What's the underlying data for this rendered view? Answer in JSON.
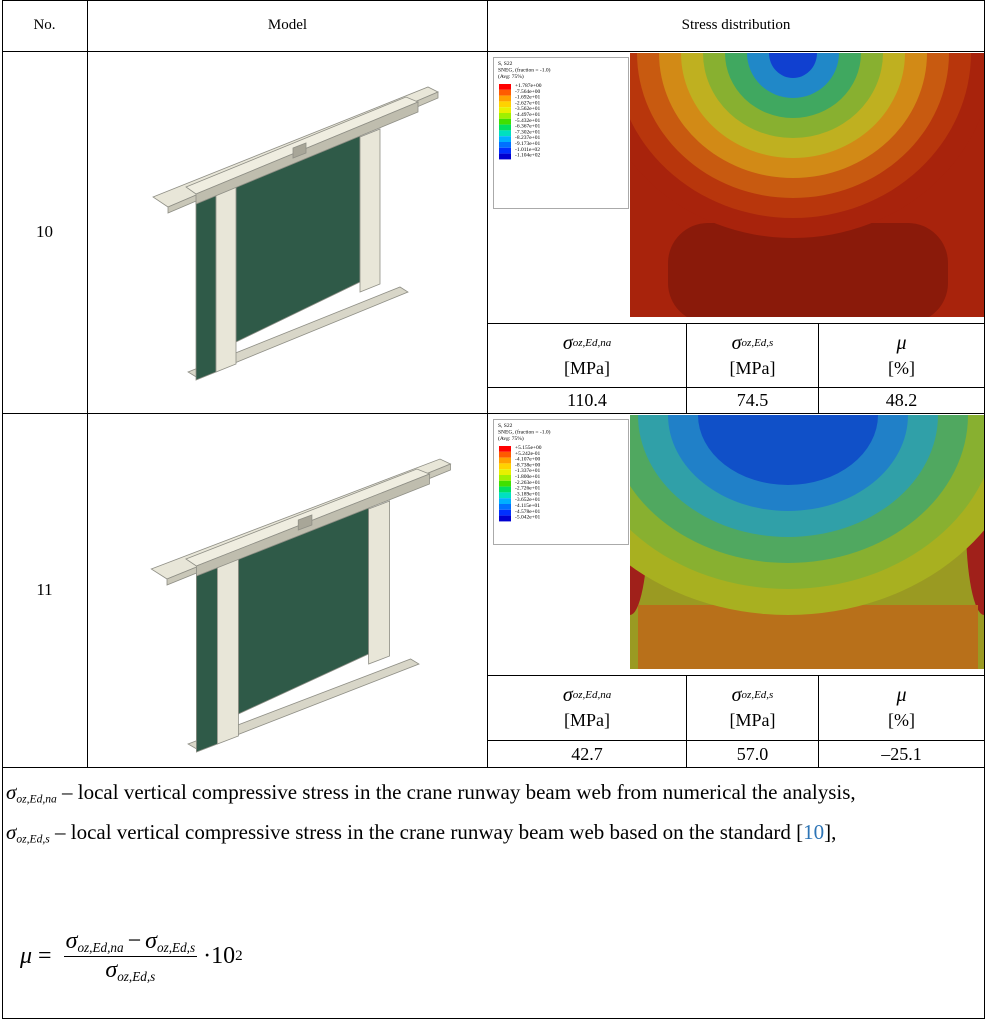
{
  "table": {
    "header": [
      "No.",
      "Model",
      "Stress distribution"
    ],
    "rows": [
      {
        "no": "10",
        "legend": {
          "title": [
            "S, S22",
            "SNEG, (fraction = -1.0)",
            "(Avg: 75%)"
          ],
          "values": [
            "+1.787e+00",
            "-7.564e+00",
            "-1.692e+01",
            "-2.627e+01",
            "-3.562e+01",
            "-4.497e+01",
            "-5.432e+01",
            "-6.367e+01",
            "-7.302e+01",
            "-8.237e+01",
            "-9.173e+01",
            "-1.011e+02",
            "-1.104e+02"
          ]
        },
        "result_header": [
          {
            "symbol": "σ",
            "subscript": "oz,Ed,na"
          },
          {
            "symbol": "σ",
            "subscript": "oz,Ed,s"
          },
          {
            "symbol": "μ"
          }
        ],
        "units": [
          "[MPa]",
          "[MPa]",
          "[%]"
        ],
        "results": [
          "110.4",
          "74.5",
          "48.2"
        ]
      },
      {
        "no": "11",
        "legend": {
          "title": [
            "S, S22",
            "SNEG, (fraction = -1.0)",
            "(Avg: 75%)"
          ],
          "values": [
            "+5.155e+00",
            "+5.242e-01",
            "-4.107e+00",
            "-8.738e+00",
            "-1.337e+01",
            "-1.800e+01",
            "-2.263e+01",
            "-2.726e+01",
            "-3.189e+01",
            "-3.652e+01",
            "-4.115e+01",
            "-4.578e+01",
            "-5.042e+01"
          ]
        },
        "result_header": [
          {
            "symbol": "σ",
            "subscript": "oz,Ed,na"
          },
          {
            "symbol": "σ",
            "subscript": "oz,Ed,s"
          },
          {
            "symbol": "μ"
          }
        ],
        "units": [
          "[MPa]",
          "[MPa]",
          "[%]"
        ],
        "results": [
          "42.7",
          "57.0",
          "–25.1"
        ]
      }
    ]
  },
  "notes": [
    {
      "symbol": "σ",
      "subscript": "oz,Ed,na",
      "text": " – local vertical compressive stress in the crane runway beam web from numerical the analysis,"
    },
    {
      "symbol": "σ",
      "subscript": "oz,Ed,s",
      "text": " – local vertical compressive stress in the crane runway beam web based on the standard [",
      "ref": "10",
      "after": "],"
    }
  ],
  "formula": {
    "lhs": "μ",
    "eq": "=",
    "numerator": [
      {
        "symbol": "σ",
        "subscript": "oz,Ed,na"
      },
      "−",
      {
        "symbol": "σ",
        "subscript": "oz,Ed,s"
      }
    ],
    "denominator": {
      "symbol": "σ",
      "subscript": "oz,Ed,s"
    },
    "factor": "·10",
    "exponent": "2"
  }
}
